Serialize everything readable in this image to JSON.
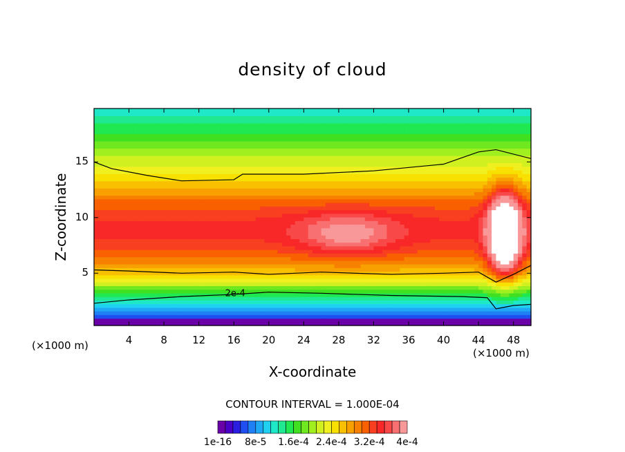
{
  "chart_data": {
    "type": "heatmap",
    "title": "density of cloud",
    "xlabel": "X-coordinate",
    "ylabel": "Z-coordinate",
    "x_unit_left": "(×1000 m)",
    "x_unit_right": "(×1000 m)",
    "xlim": [
      0,
      50
    ],
    "ylim": [
      0.3,
      19.8
    ],
    "x_ticks": [
      "4",
      "8",
      "12",
      "16",
      "20",
      "24",
      "28",
      "32",
      "36",
      "40",
      "44",
      "48"
    ],
    "x_tick_values": [
      4,
      8,
      12,
      16,
      20,
      24,
      28,
      32,
      36,
      40,
      44,
      48
    ],
    "y_ticks": [
      "5",
      "10",
      "15"
    ],
    "y_tick_values": [
      5,
      10,
      15
    ],
    "contour_interval_text": "CONTOUR INTERVAL = 1.000E-04",
    "contour_label": "2e-4",
    "colorbar_labels": [
      "1e-16",
      "8e-5",
      "1.6e-4",
      "2.4e-4",
      "3.2e-4",
      "4e-4"
    ],
    "colorbar_colors": [
      "#6a00a8",
      "#4b00c8",
      "#2a1ee0",
      "#1f4ff0",
      "#1f7ff5",
      "#1fa8f5",
      "#1fd0f0",
      "#1fe8c8",
      "#1fe890",
      "#1fe850",
      "#40e020",
      "#70e820",
      "#a0f020",
      "#d0f020",
      "#f0f020",
      "#f8e000",
      "#f8c000",
      "#f8a000",
      "#f88000",
      "#f86000",
      "#f84020",
      "#f82828",
      "#f84848",
      "#f87070",
      "#f89898"
    ],
    "levels": [
      0,
      1e-05,
      5e-05,
      0.0001,
      0.00015,
      0.0002,
      0.00025,
      0.0003,
      0.00035,
      0.0004,
      0.00045
    ]
  }
}
